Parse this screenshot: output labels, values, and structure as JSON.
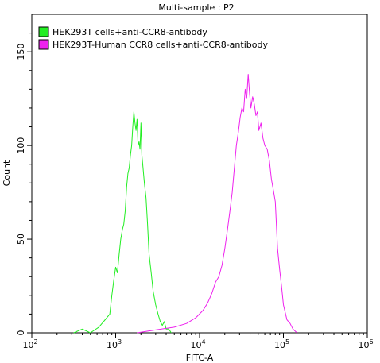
{
  "chart_data": {
    "type": "line",
    "title": "Multi-sample : P2",
    "xlabel": "FITC-A",
    "ylabel": "Count",
    "xscale": "log",
    "xlim": [
      100,
      1000000
    ],
    "ylim": [
      0,
      170
    ],
    "grid": false,
    "legend_position": "top-left",
    "x_ticks": [
      {
        "base": "10",
        "exp": "2",
        "value": 100
      },
      {
        "base": "10",
        "exp": "3",
        "value": 1000
      },
      {
        "base": "10",
        "exp": "4",
        "value": 10000
      },
      {
        "base": "10",
        "exp": "5",
        "value": 100000
      },
      {
        "base": "10",
        "exp": "6",
        "value": 1000000
      }
    ],
    "y_ticks": [
      {
        "label": "0",
        "value": 0
      },
      {
        "label": "50",
        "value": 50
      },
      {
        "label": "100",
        "value": 100
      },
      {
        "label": "150",
        "value": 150
      }
    ],
    "series": [
      {
        "name": "HEK293T cells+anti-CCR8-antibody",
        "color": "#22ee22",
        "x": [
          316,
          400,
          500,
          630,
          750,
          850,
          900,
          950,
          1000,
          1050,
          1100,
          1150,
          1200,
          1250,
          1300,
          1350,
          1400,
          1450,
          1500,
          1550,
          1600,
          1650,
          1700,
          1750,
          1800,
          1850,
          1900,
          1950,
          2000,
          2050,
          2100,
          2200,
          2300,
          2400,
          2500,
          2650,
          2800,
          3000,
          3200,
          3400,
          3600,
          3800,
          4000,
          4300,
          4600
        ],
        "y": [
          0,
          2,
          0,
          3,
          7,
          10,
          20,
          28,
          35,
          32,
          42,
          50,
          55,
          58,
          65,
          78,
          85,
          88,
          95,
          100,
          110,
          118,
          112,
          108,
          114,
          100,
          102,
          98,
          112,
          95,
          90,
          80,
          72,
          58,
          42,
          32,
          22,
          15,
          10,
          6,
          4,
          6,
          2,
          2,
          0
        ]
      },
      {
        "name": "HEK293T-Human CCR8 cells+anti-CCR8-antibody",
        "color": "#ee22ee",
        "x": [
          1800,
          2500,
          3500,
          5000,
          7000,
          9000,
          11000,
          12500,
          14000,
          15500,
          17000,
          18500,
          20000,
          21500,
          23000,
          24500,
          26000,
          27500,
          29000,
          30500,
          32000,
          33500,
          35000,
          36500,
          38000,
          39500,
          41000,
          43000,
          45000,
          47000,
          49000,
          51000,
          54000,
          57000,
          60000,
          64000,
          68000,
          72000,
          76000,
          80000,
          85000,
          90000,
          95000,
          100000,
          110000,
          120000,
          130000,
          145000
        ],
        "y": [
          0,
          1,
          2,
          3,
          5,
          8,
          12,
          16,
          21,
          27,
          30,
          36,
          45,
          55,
          65,
          75,
          88,
          100,
          107,
          115,
          120,
          118,
          130,
          125,
          138,
          128,
          120,
          126,
          122,
          116,
          118,
          108,
          112,
          104,
          100,
          98,
          92,
          82,
          76,
          70,
          45,
          34,
          25,
          15,
          7,
          5,
          2,
          0
        ]
      }
    ]
  }
}
